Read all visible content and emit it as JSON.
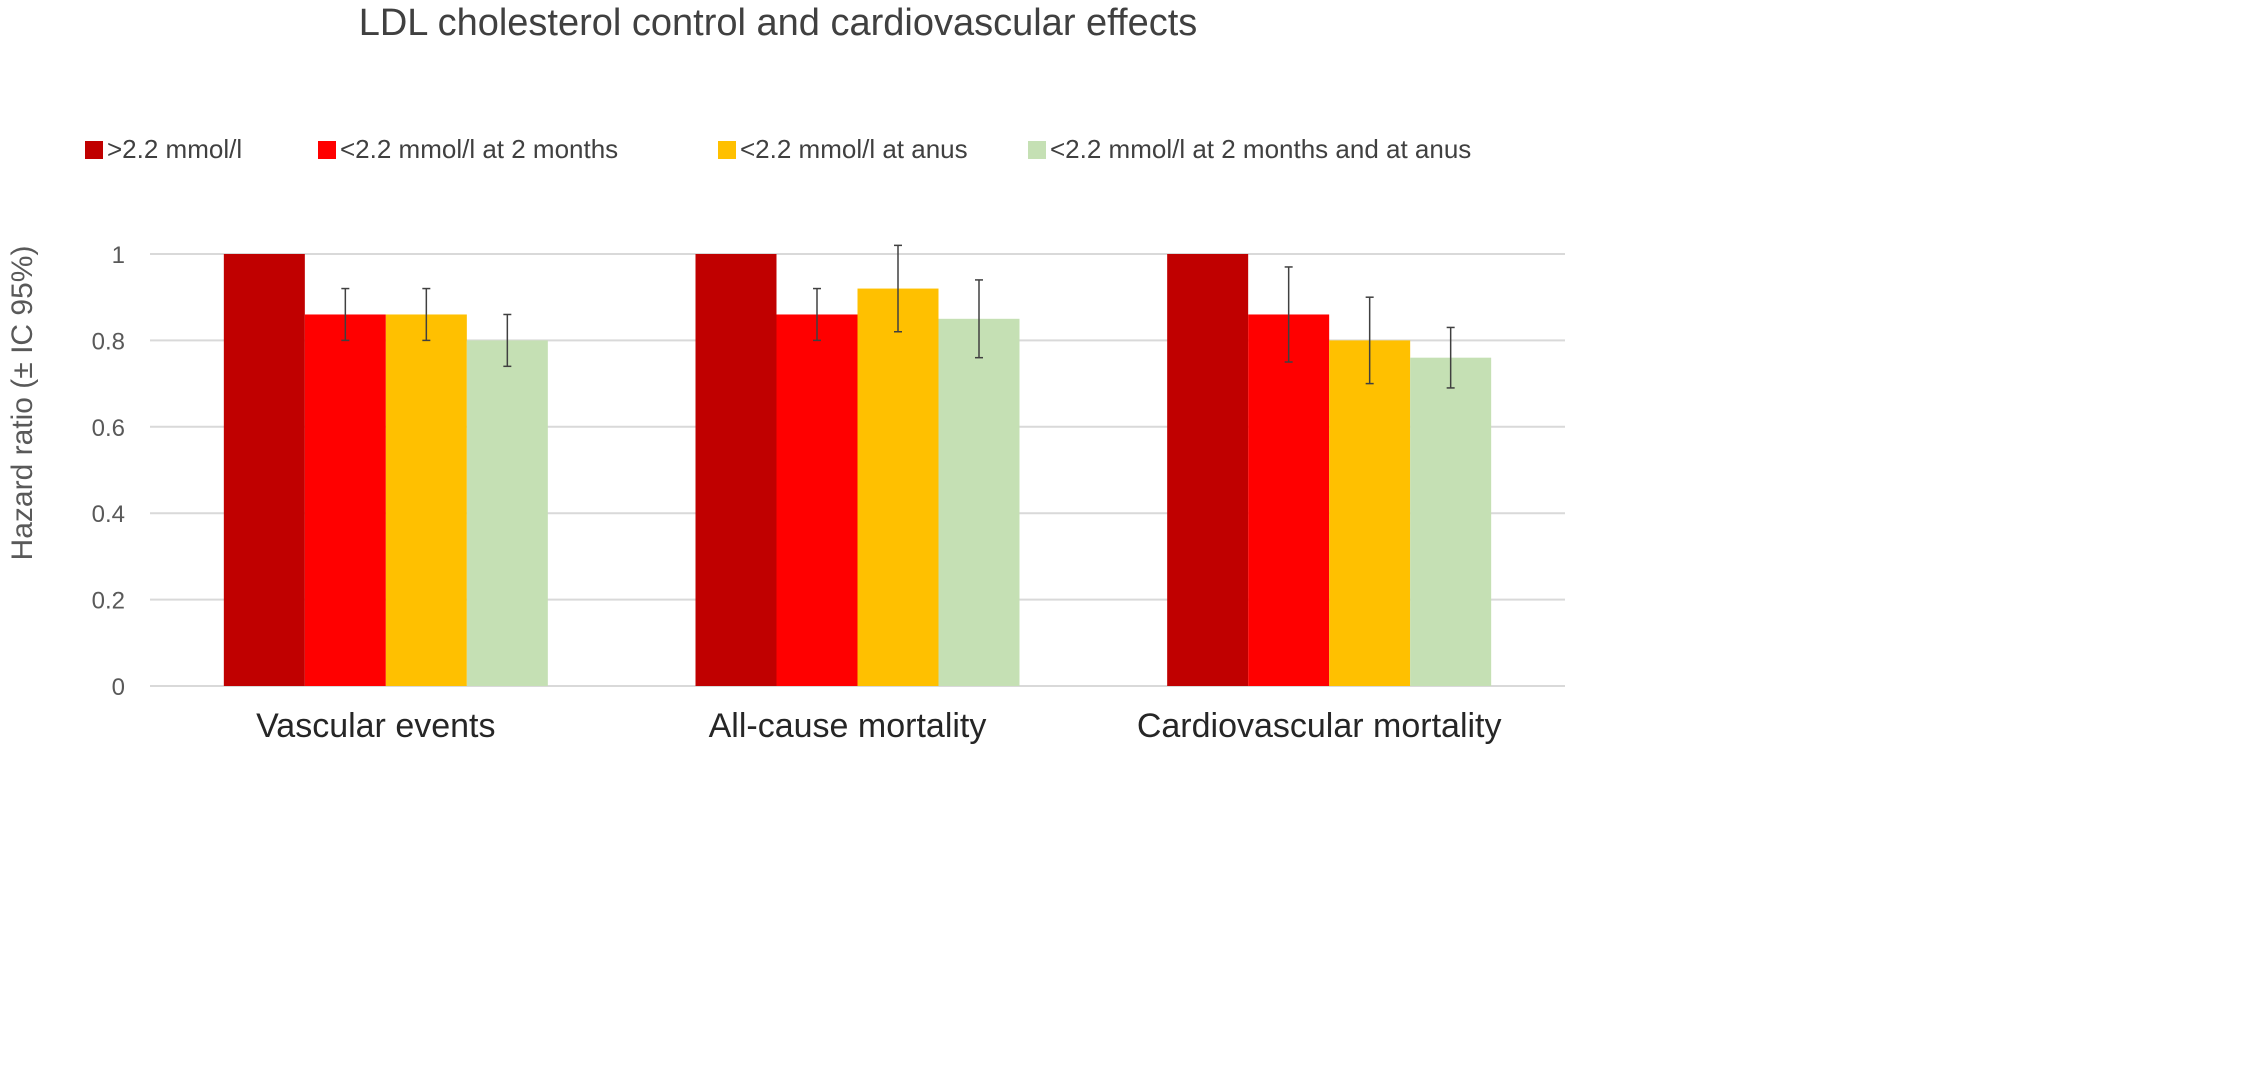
{
  "chart_data": {
    "type": "bar",
    "title": "LDL cholesterol control and cardiovascular effects",
    "xlabel": "",
    "ylabel": "Hazard ratio (± IC 95%)",
    "ylim": [
      0,
      1
    ],
    "yticks": [
      "0",
      "0.2",
      "0.4",
      "0.6",
      "0.8",
      "1"
    ],
    "grid": true,
    "legend_position": "top",
    "categories": [
      "Vascular events",
      "All-cause mortality",
      "Cardiovascular mortality"
    ],
    "series": [
      {
        "name": ">2.2 mmol/l",
        "color": "#c00000",
        "values": [
          1,
          1,
          1
        ],
        "ci_low": [
          null,
          null,
          null
        ],
        "ci_high": [
          null,
          null,
          null
        ]
      },
      {
        "name": "<2.2 mmol/l at 2 months",
        "color": "#ff0000",
        "values": [
          0.86,
          0.86,
          0.86
        ],
        "ci_low": [
          0.8,
          0.8,
          0.75
        ],
        "ci_high": [
          0.92,
          0.92,
          0.97
        ]
      },
      {
        "name": "<2.2 mmol/l at anus",
        "color": "#ffc000",
        "values": [
          0.86,
          0.92,
          0.8
        ],
        "ci_low": [
          0.8,
          0.82,
          0.7
        ],
        "ci_high": [
          0.92,
          1.02,
          0.9
        ]
      },
      {
        "name": "<2.2 mmol/l at 2 months and at anus",
        "color": "#c5e0b4",
        "values": [
          0.8,
          0.85,
          0.76
        ],
        "ci_low": [
          0.74,
          0.76,
          0.69
        ],
        "ci_high": [
          0.86,
          0.94,
          0.83
        ]
      }
    ]
  }
}
